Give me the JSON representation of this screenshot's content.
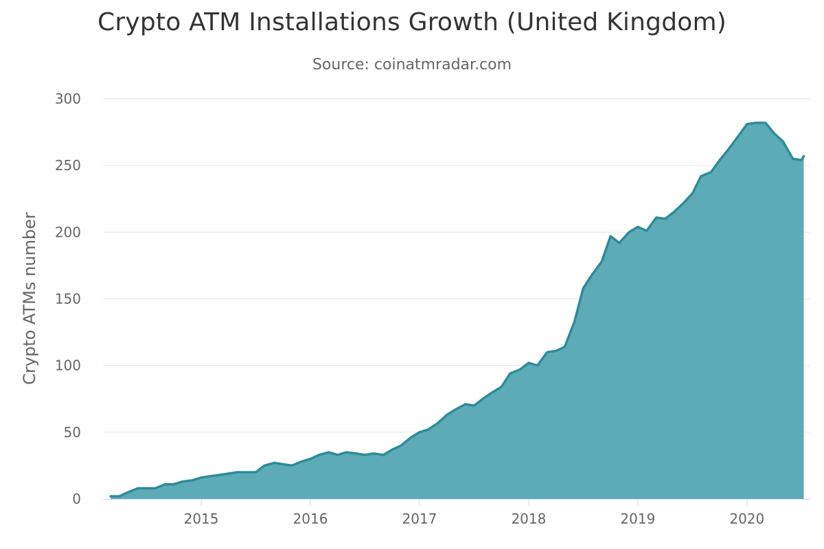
{
  "chart_data": {
    "type": "area",
    "title": "Crypto ATM Installations Growth (United Kingdom)",
    "subtitle": "Source: coinatmradar.com",
    "xlabel": "",
    "ylabel": "Crypto ATMs number",
    "xlim": [
      2014.1,
      2020.58
    ],
    "ylim": [
      0,
      300
    ],
    "yticks": [
      0,
      50,
      100,
      150,
      200,
      250,
      300
    ],
    "xticks": [
      2015,
      2016,
      2017,
      2018,
      2019,
      2020
    ],
    "grid": true,
    "legend": "none",
    "series": [
      {
        "name": "Crypto ATMs number",
        "color": "#2e8b99",
        "fill": "#5eabb8",
        "points": [
          [
            2014.17,
            2
          ],
          [
            2014.25,
            2
          ],
          [
            2014.33,
            5
          ],
          [
            2014.42,
            8
          ],
          [
            2014.5,
            8
          ],
          [
            2014.58,
            8
          ],
          [
            2014.67,
            11
          ],
          [
            2014.75,
            11
          ],
          [
            2014.83,
            13
          ],
          [
            2014.92,
            14
          ],
          [
            2015.0,
            16
          ],
          [
            2015.08,
            17
          ],
          [
            2015.17,
            18
          ],
          [
            2015.25,
            19
          ],
          [
            2015.33,
            20
          ],
          [
            2015.42,
            20
          ],
          [
            2015.5,
            20
          ],
          [
            2015.58,
            25
          ],
          [
            2015.67,
            27
          ],
          [
            2015.75,
            26
          ],
          [
            2015.83,
            25
          ],
          [
            2015.92,
            28
          ],
          [
            2016.0,
            30
          ],
          [
            2016.08,
            33
          ],
          [
            2016.17,
            35
          ],
          [
            2016.25,
            33
          ],
          [
            2016.33,
            35
          ],
          [
            2016.42,
            34
          ],
          [
            2016.5,
            33
          ],
          [
            2016.58,
            34
          ],
          [
            2016.67,
            33
          ],
          [
            2016.75,
            37
          ],
          [
            2016.83,
            40
          ],
          [
            2016.92,
            46
          ],
          [
            2017.0,
            50
          ],
          [
            2017.08,
            52
          ],
          [
            2017.17,
            57
          ],
          [
            2017.25,
            63
          ],
          [
            2017.33,
            67
          ],
          [
            2017.42,
            71
          ],
          [
            2017.5,
            70
          ],
          [
            2017.58,
            75
          ],
          [
            2017.67,
            80
          ],
          [
            2017.75,
            84
          ],
          [
            2017.83,
            94
          ],
          [
            2017.92,
            97
          ],
          [
            2018.0,
            102
          ],
          [
            2018.08,
            100
          ],
          [
            2018.17,
            110
          ],
          [
            2018.25,
            111
          ],
          [
            2018.33,
            114
          ],
          [
            2018.42,
            133
          ],
          [
            2018.5,
            158
          ],
          [
            2018.58,
            168
          ],
          [
            2018.67,
            178
          ],
          [
            2018.75,
            197
          ],
          [
            2018.83,
            192
          ],
          [
            2018.92,
            200
          ],
          [
            2019.0,
            204
          ],
          [
            2019.08,
            201
          ],
          [
            2019.17,
            211
          ],
          [
            2019.25,
            210
          ],
          [
            2019.33,
            215
          ],
          [
            2019.42,
            222
          ],
          [
            2019.5,
            229
          ],
          [
            2019.58,
            242
          ],
          [
            2019.67,
            245
          ],
          [
            2019.75,
            254
          ],
          [
            2019.83,
            262
          ],
          [
            2019.92,
            272
          ],
          [
            2020.0,
            281
          ],
          [
            2020.08,
            282
          ],
          [
            2020.17,
            282
          ],
          [
            2020.25,
            274
          ],
          [
            2020.33,
            268
          ],
          [
            2020.42,
            255
          ],
          [
            2020.5,
            254
          ],
          [
            2020.52,
            257
          ]
        ]
      }
    ]
  }
}
